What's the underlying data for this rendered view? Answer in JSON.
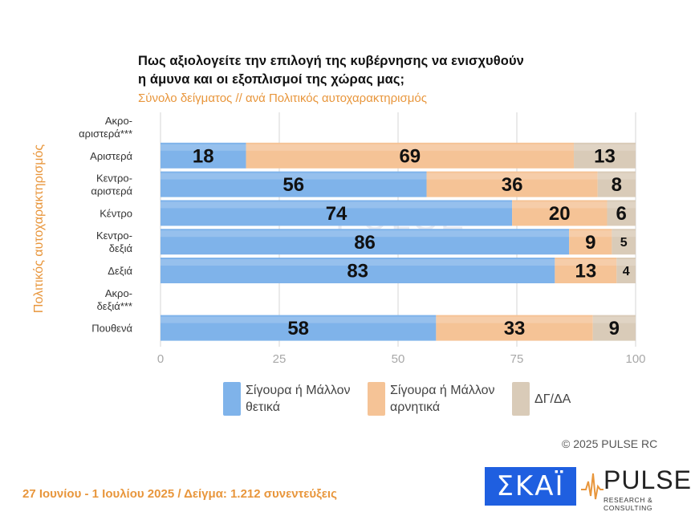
{
  "title_line1": "Πως αξιολογείτε την επιλογή της κυβέρνησης να ενισχυθούν",
  "title_line2": "η άμυνα και οι εξοπλισμοί της χώρας μας;",
  "subtitle": "Σύνολο δείγματος // ανά Πολιτικός αυτοχαρακτηρισμός",
  "y_axis_label": "Πολιτικός αυτοχαρακτηρισμός",
  "copyright": "© 2025 PULSE RC",
  "footer": "27 Ιουνίου - 1 Ιουλίου 2025  /  Δείγμα:  1.212 συνεντεύξεις",
  "logos": {
    "skai": "ΣΚΑΪ",
    "pulse": "PULSE",
    "pulse_sub": "RESEARCH & CONSULTING",
    "watermark": "PULSE",
    "watermark_sub": "RESEARCH & CONSULTING"
  },
  "colors": {
    "positive": "#7fb3ea",
    "negative": "#f5c396",
    "dk": "#d9cbb8",
    "title_accent": "#e8963c",
    "grid": "#d4d4d4"
  },
  "chart_data": {
    "type": "bar",
    "orientation": "horizontal",
    "stacked": true,
    "categories": [
      "Ακρο-\nαριστερά***",
      "Αριστερά",
      "Κεντρο-\nαριστερά",
      "Κέντρο",
      "Κεντρο-\nδεξιά",
      "Δεξιά",
      "Ακρο-\nδεξιά***",
      "Πουθενά"
    ],
    "series": [
      {
        "name": "Σίγουρα ή Μάλλον\nθετικά",
        "color": "#7fb3ea",
        "values": [
          null,
          18,
          56,
          74,
          86,
          83,
          null,
          58
        ]
      },
      {
        "name": "Σίγουρα ή Μάλλον\nαρνητικά",
        "color": "#f5c396",
        "values": [
          null,
          69,
          36,
          20,
          9,
          13,
          null,
          33
        ]
      },
      {
        "name": "ΔΓ/ΔΑ",
        "color": "#d9cbb8",
        "values": [
          null,
          13,
          8,
          6,
          5,
          4,
          null,
          9
        ]
      }
    ],
    "xlim": [
      0,
      100
    ],
    "xticks": [
      "0",
      "25",
      "50",
      "75",
      "100"
    ],
    "grid": true,
    "legend_position": "bottom"
  }
}
